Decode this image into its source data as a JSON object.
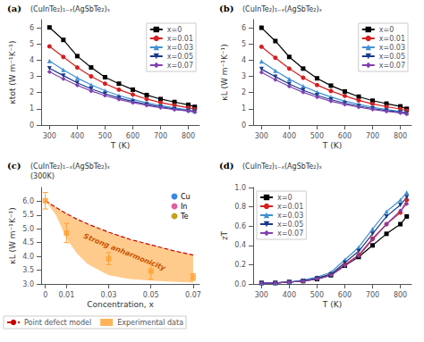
{
  "chart_data": [
    {
      "type": "line",
      "annotations": [
        {
          "text": "(a)"
        },
        {
          "text": "(CuInTe₂)₁₋ₓ(AgSbTe₂)ₓ"
        }
      ],
      "x_label": "T (K)",
      "y_label": "κtot (W m⁻¹K⁻¹)",
      "x": [
        300,
        350,
        400,
        450,
        500,
        550,
        600,
        650,
        700,
        750,
        800,
        823
      ],
      "xlim": [
        270,
        840
      ],
      "xticks": [
        300,
        400,
        500,
        600,
        700,
        800
      ],
      "ylim": [
        0,
        6.5
      ],
      "yticks": [
        0,
        1,
        2,
        3,
        4,
        5,
        6
      ],
      "grid": false,
      "legend": "upper right",
      "series": [
        {
          "name": "x=0",
          "color": "#000000",
          "marker": "square",
          "values": [
            6.02,
            5.25,
            4.25,
            3.55,
            2.95,
            2.55,
            2.18,
            1.85,
            1.6,
            1.42,
            1.25,
            1.12
          ]
        },
        {
          "name": "x=0.01",
          "color": "#d42020",
          "marker": "circle",
          "values": [
            4.85,
            4.2,
            3.55,
            3.0,
            2.55,
            2.18,
            1.88,
            1.6,
            1.38,
            1.22,
            1.07,
            0.97
          ]
        },
        {
          "name": "x=0.03",
          "color": "#4090d0",
          "marker": "triangle-up",
          "values": [
            3.95,
            3.4,
            2.9,
            2.48,
            2.12,
            1.82,
            1.58,
            1.37,
            1.2,
            1.05,
            0.93,
            0.85
          ]
        },
        {
          "name": "x=0.05",
          "color": "#1a3a8a",
          "marker": "triangle-down",
          "values": [
            3.5,
            3.05,
            2.6,
            2.23,
            1.93,
            1.67,
            1.45,
            1.27,
            1.12,
            0.98,
            0.88,
            0.82
          ]
        },
        {
          "name": "x=0.07",
          "color": "#8040b0",
          "marker": "diamond",
          "values": [
            3.28,
            2.85,
            2.45,
            2.1,
            1.82,
            1.58,
            1.38,
            1.21,
            1.07,
            0.95,
            0.86,
            0.8
          ]
        }
      ]
    },
    {
      "type": "line",
      "annotations": [
        {
          "text": "(b)"
        },
        {
          "text": "(CuInTe₂)₁₋ₓ(AgSbTe₂)ₓ"
        }
      ],
      "x_label": "T (K)",
      "y_label": "κL (W m⁻¹K⁻¹)",
      "x": [
        300,
        350,
        400,
        450,
        500,
        550,
        600,
        650,
        700,
        750,
        800,
        823
      ],
      "xlim": [
        270,
        840
      ],
      "xticks": [
        300,
        400,
        500,
        600,
        700,
        800
      ],
      "ylim": [
        0,
        6.5
      ],
      "yticks": [
        0,
        1,
        2,
        3,
        4,
        5,
        6
      ],
      "grid": false,
      "legend": "upper right",
      "series": [
        {
          "name": "x=0",
          "color": "#000000",
          "marker": "square",
          "values": [
            6.0,
            5.18,
            4.2,
            3.48,
            2.88,
            2.43,
            2.07,
            1.75,
            1.5,
            1.32,
            1.15,
            1.0
          ]
        },
        {
          "name": "x=0.01",
          "color": "#d42020",
          "marker": "circle",
          "values": [
            4.83,
            4.15,
            3.48,
            2.92,
            2.47,
            2.1,
            1.8,
            1.52,
            1.3,
            1.13,
            0.99,
            0.88
          ]
        },
        {
          "name": "x=0.03",
          "color": "#4090d0",
          "marker": "triangle-up",
          "values": [
            3.92,
            3.35,
            2.83,
            2.4,
            2.03,
            1.73,
            1.48,
            1.27,
            1.1,
            0.96,
            0.84,
            0.75
          ]
        },
        {
          "name": "x=0.05",
          "color": "#1a3a8a",
          "marker": "triangle-down",
          "values": [
            3.45,
            2.98,
            2.53,
            2.15,
            1.83,
            1.57,
            1.35,
            1.17,
            1.02,
            0.89,
            0.79,
            0.72
          ]
        },
        {
          "name": "x=0.07",
          "color": "#8040b0",
          "marker": "diamond",
          "values": [
            3.25,
            2.8,
            2.38,
            2.02,
            1.72,
            1.47,
            1.27,
            1.1,
            0.96,
            0.84,
            0.75,
            0.68
          ]
        }
      ]
    },
    {
      "type": "line",
      "annotations": [
        {
          "text": "(c)"
        },
        {
          "text": "(CuInTe₂)₁₋ₓ(AgSbTe₂)ₓ\n(300K)"
        },
        {
          "text": "Strong anharmonicity",
          "color": "#CC5500"
        },
        {
          "text": "Cu",
          "color": "#3888E8"
        },
        {
          "text": "In",
          "color": "#E060A0"
        },
        {
          "text": "Te",
          "color": "#C8A020"
        }
      ],
      "x_label": "Concentration, x",
      "y_label": "κL (W m⁻¹K⁻¹)",
      "xlim": [
        -0.002,
        0.073
      ],
      "xticks": [
        0,
        0.01,
        0.03,
        0.05,
        0.07
      ],
      "ylim": [
        3.0,
        6.5
      ],
      "yticks": [
        {
          "value": 3,
          "label": "3.0"
        },
        3.5,
        {
          "value": 4,
          "label": "4.0"
        },
        4.5,
        {
          "value": 5,
          "label": "5.0"
        },
        5.5,
        {
          "value": 6,
          "label": "6.0"
        }
      ],
      "grid": false,
      "legend": "lower left",
      "series": [
        {
          "type": "area",
          "color": "#FFA030",
          "x": [
            0,
            0.005,
            0.01,
            0.015,
            0.02,
            0.03,
            0.04,
            0.05,
            0.06,
            0.07
          ],
          "lower": [
            6.02,
            5.5,
            4.65,
            4.1,
            3.72,
            3.32,
            3.18,
            3.12,
            3.08,
            3.05
          ],
          "upper": [
            6.02,
            5.78,
            5.55,
            5.35,
            5.18,
            4.88,
            4.62,
            4.42,
            4.22,
            4.05
          ]
        },
        {
          "name": "Point defect model",
          "type": "line",
          "color": "#cc0000",
          "line_style": "dashed",
          "x": [
            0,
            0.005,
            0.01,
            0.015,
            0.02,
            0.03,
            0.04,
            0.05,
            0.06,
            0.07
          ],
          "values": [
            6.02,
            5.78,
            5.55,
            5.35,
            5.18,
            4.88,
            4.62,
            4.42,
            4.22,
            4.05
          ]
        },
        {
          "name": "Experimental data",
          "type": "scatter",
          "color": "#FFA030",
          "marker": "square",
          "x": [
            0,
            0.01,
            0.03,
            0.05,
            0.07
          ],
          "values": [
            6.02,
            4.85,
            3.92,
            3.47,
            3.25
          ],
          "errors": [
            0.3,
            0.35,
            0.22,
            0.3,
            0.12
          ]
        }
      ]
    },
    {
      "type": "line",
      "annotations": [
        {
          "text": "(d)"
        },
        {
          "text": "(CuInTe₂)₁₋ₓ(AgSbTe₂)ₓ"
        }
      ],
      "x_label": "T (K)",
      "y_label": "zT",
      "x": [
        300,
        350,
        400,
        450,
        500,
        550,
        600,
        650,
        700,
        750,
        800,
        823
      ],
      "xlim": [
        270,
        840
      ],
      "xticks": [
        300,
        400,
        500,
        600,
        700,
        800
      ],
      "ylim": [
        0,
        1.0
      ],
      "yticks": [
        {
          "value": 0,
          "label": "0.0"
        },
        0.2,
        0.4,
        0.6,
        0.8,
        {
          "value": 1,
          "label": "1.0"
        }
      ],
      "grid": false,
      "legend": "upper left",
      "series": [
        {
          "name": "x=0",
          "color": "#000000",
          "marker": "square",
          "values": [
            0.01,
            0.01,
            0.02,
            0.03,
            0.05,
            0.09,
            0.19,
            0.28,
            0.4,
            0.52,
            0.62,
            0.7
          ]
        },
        {
          "name": "x=0.01",
          "color": "#d42020",
          "marker": "circle",
          "values": [
            0.01,
            0.01,
            0.02,
            0.03,
            0.06,
            0.1,
            0.2,
            0.3,
            0.47,
            0.62,
            0.74,
            0.87
          ]
        },
        {
          "name": "x=0.03",
          "color": "#4090d0",
          "marker": "triangle-up",
          "values": [
            0.01,
            0.01,
            0.02,
            0.04,
            0.07,
            0.12,
            0.25,
            0.38,
            0.57,
            0.75,
            0.87,
            0.95
          ]
        },
        {
          "name": "x=0.05",
          "color": "#1a3a8a",
          "marker": "triangle-down",
          "values": [
            0.01,
            0.01,
            0.02,
            0.03,
            0.06,
            0.1,
            0.22,
            0.34,
            0.52,
            0.7,
            0.82,
            0.9
          ]
        },
        {
          "name": "x=0.07",
          "color": "#8040b0",
          "marker": "diamond",
          "values": [
            0.01,
            0.01,
            0.02,
            0.03,
            0.05,
            0.09,
            0.19,
            0.29,
            0.46,
            0.62,
            0.76,
            0.83
          ]
        }
      ]
    }
  ]
}
